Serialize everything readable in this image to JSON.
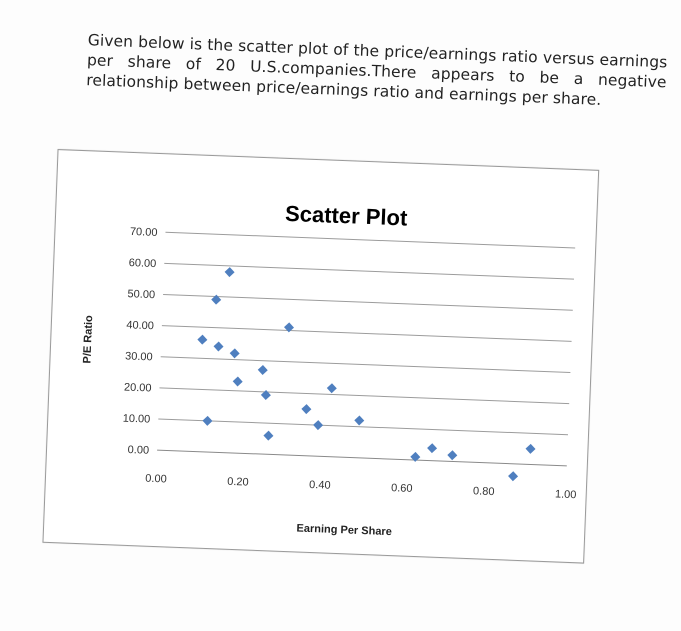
{
  "intro_text": "Given below is the scatter plot of the price/earnings ratio versus earnings per share of 20 U.S.companies.There appears to be a negative relationship between price/earnings ratio and earnings per share.",
  "chart_data": {
    "type": "scatter",
    "title": "Scatter Plot",
    "xlabel": "Earning Per Share",
    "ylabel": "P/E Ratio",
    "xlim": [
      0,
      1
    ],
    "ylim": [
      0,
      70
    ],
    "x_ticks": [
      "0.00",
      "0.20",
      "0.40",
      "0.60",
      "0.80",
      "1.00"
    ],
    "y_ticks": [
      "0.00",
      "10.00",
      "20.00",
      "30.00",
      "40.00",
      "50.00",
      "60.00",
      "70.00"
    ],
    "grid": true,
    "marker_color": "#4f7fbf",
    "points": [
      {
        "x": 0.1,
        "y": 36
      },
      {
        "x": 0.12,
        "y": 10
      },
      {
        "x": 0.13,
        "y": 49
      },
      {
        "x": 0.14,
        "y": 34
      },
      {
        "x": 0.16,
        "y": 58
      },
      {
        "x": 0.18,
        "y": 32
      },
      {
        "x": 0.19,
        "y": 23
      },
      {
        "x": 0.25,
        "y": 27
      },
      {
        "x": 0.26,
        "y": 19
      },
      {
        "x": 0.27,
        "y": 6
      },
      {
        "x": 0.31,
        "y": 41
      },
      {
        "x": 0.36,
        "y": 15
      },
      {
        "x": 0.39,
        "y": 10
      },
      {
        "x": 0.42,
        "y": 22
      },
      {
        "x": 0.49,
        "y": 12
      },
      {
        "x": 0.63,
        "y": 1
      },
      {
        "x": 0.67,
        "y": 4
      },
      {
        "x": 0.72,
        "y": 2
      },
      {
        "x": 0.87,
        "y": -4
      },
      {
        "x": 0.91,
        "y": 5
      }
    ]
  }
}
